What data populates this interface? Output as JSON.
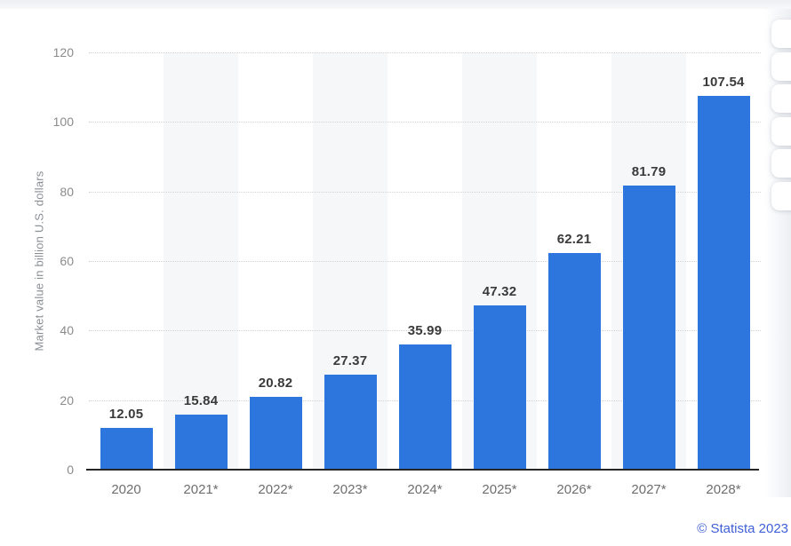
{
  "page": {
    "copyright": "© Statista 2023"
  },
  "side_toolbar": {
    "button_count": 6,
    "note": "partially cut off rounded buttons at right edge"
  },
  "chart_data": {
    "type": "bar",
    "title": "",
    "categories": [
      "2020",
      "2021*",
      "2022*",
      "2023*",
      "2024*",
      "2025*",
      "2026*",
      "2027*",
      "2028*"
    ],
    "values": [
      12.05,
      15.84,
      20.82,
      27.37,
      35.99,
      47.32,
      62.21,
      81.79,
      107.54
    ],
    "value_labels": [
      "12.05",
      "15.84",
      "20.82",
      "27.37",
      "35.99",
      "47.32",
      "62.21",
      "81.79",
      "107.54"
    ],
    "xlabel": "",
    "ylabel": "Market value in billion U.S. dollars",
    "ylim": [
      0,
      120
    ],
    "yticks": [
      0,
      20,
      40,
      60,
      80,
      100,
      120
    ],
    "grid": "horizontal-dotted",
    "legend": "none",
    "bar_color": "#2c76dd",
    "stripe_color": "#f6f7f8",
    "alternating_column_bands": true
  }
}
